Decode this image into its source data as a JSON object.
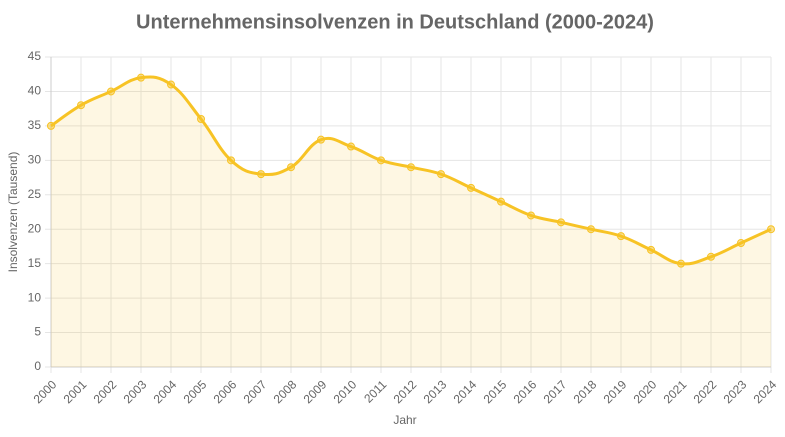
{
  "chart_data": {
    "type": "line",
    "title": "Unternehmensinsolvenzen in Deutschland (2000-2024)",
    "x_label": "Jahr",
    "y_label": "Insolvenzen (Tausend)",
    "categories": [
      "2000",
      "2001",
      "2002",
      "2003",
      "2004",
      "2005",
      "2006",
      "2007",
      "2008",
      "2009",
      "2010",
      "2011",
      "2012",
      "2013",
      "2014",
      "2015",
      "2016",
      "2017",
      "2018",
      "2019",
      "2020",
      "2021",
      "2022",
      "2023",
      "2024"
    ],
    "series": [
      {
        "name": "Insolvenzen",
        "color": "#f7c325",
        "values": [
          35,
          38,
          40,
          42,
          41,
          36,
          30,
          28,
          29,
          33,
          32,
          30,
          29,
          28,
          26,
          24,
          22,
          21,
          20,
          19,
          17,
          15,
          16,
          18,
          20
        ]
      }
    ],
    "ylim": [
      0,
      45
    ],
    "yticks": [
      0,
      5,
      10,
      15,
      20,
      25,
      30,
      35,
      40,
      45
    ],
    "grid": true,
    "fill": true
  }
}
